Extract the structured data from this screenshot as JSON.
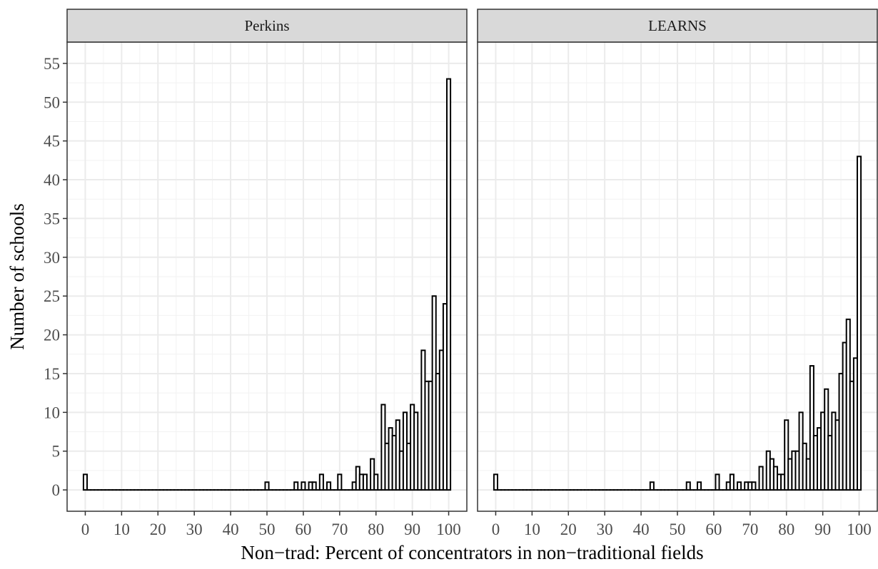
{
  "chart_data": {
    "type": "bar",
    "xlabel": "Non−trad: Percent of concentrators in non−traditional fields",
    "ylabel": "Number of schools",
    "xlim": [
      -5,
      105
    ],
    "ylim": [
      -2.75,
      57.75
    ],
    "x_ticks": [
      0,
      10,
      20,
      30,
      40,
      50,
      60,
      70,
      80,
      90,
      100
    ],
    "y_ticks": [
      0,
      5,
      10,
      15,
      20,
      25,
      30,
      35,
      40,
      45,
      50,
      55
    ],
    "grid": true,
    "bin_width": 1,
    "panels": [
      {
        "name": "Perkins",
        "x": [
          0,
          1,
          2,
          3,
          4,
          5,
          6,
          7,
          8,
          9,
          10,
          11,
          12,
          13,
          14,
          15,
          16,
          17,
          18,
          19,
          20,
          21,
          22,
          23,
          24,
          25,
          26,
          27,
          28,
          29,
          30,
          31,
          32,
          33,
          34,
          35,
          36,
          37,
          38,
          39,
          40,
          41,
          42,
          43,
          44,
          45,
          46,
          47,
          48,
          49,
          50,
          51,
          52,
          53,
          54,
          55,
          56,
          57,
          58,
          59,
          60,
          61,
          62,
          63,
          64,
          65,
          66,
          67,
          68,
          69,
          70,
          71,
          72,
          73,
          74,
          75,
          76,
          77,
          78,
          79,
          80,
          81,
          82,
          83,
          84,
          85,
          86,
          87,
          88,
          89,
          90,
          91,
          92,
          93,
          94,
          95,
          96,
          97,
          98,
          99,
          100
        ],
        "values": [
          2,
          0,
          0,
          0,
          0,
          0,
          0,
          0,
          0,
          0,
          0,
          0,
          0,
          0,
          0,
          0,
          0,
          0,
          0,
          0,
          0,
          0,
          0,
          0,
          0,
          0,
          0,
          0,
          0,
          0,
          0,
          0,
          0,
          0,
          0,
          0,
          0,
          0,
          0,
          0,
          0,
          0,
          0,
          0,
          0,
          0,
          0,
          0,
          0,
          0,
          1,
          0,
          0,
          0,
          0,
          0,
          0,
          0,
          1,
          0,
          1,
          0,
          1,
          1,
          0,
          2,
          0,
          1,
          0,
          0,
          2,
          0,
          0,
          0,
          1,
          3,
          2,
          2,
          0,
          4,
          2,
          0,
          11,
          6,
          8,
          7,
          9,
          5,
          10,
          6,
          11,
          10,
          0,
          18,
          14,
          14,
          25,
          15,
          18,
          24,
          53
        ]
      },
      {
        "name": "LEARNS",
        "x": [
          0,
          1,
          2,
          3,
          4,
          5,
          6,
          7,
          8,
          9,
          10,
          11,
          12,
          13,
          14,
          15,
          16,
          17,
          18,
          19,
          20,
          21,
          22,
          23,
          24,
          25,
          26,
          27,
          28,
          29,
          30,
          31,
          32,
          33,
          34,
          35,
          36,
          37,
          38,
          39,
          40,
          41,
          42,
          43,
          44,
          45,
          46,
          47,
          48,
          49,
          50,
          51,
          52,
          53,
          54,
          55,
          56,
          57,
          58,
          59,
          60,
          61,
          62,
          63,
          64,
          65,
          66,
          67,
          68,
          69,
          70,
          71,
          72,
          73,
          74,
          75,
          76,
          77,
          78,
          79,
          80,
          81,
          82,
          83,
          84,
          85,
          86,
          87,
          88,
          89,
          90,
          91,
          92,
          93,
          94,
          95,
          96,
          97,
          98,
          99,
          100
        ],
        "values": [
          2,
          0,
          0,
          0,
          0,
          0,
          0,
          0,
          0,
          0,
          0,
          0,
          0,
          0,
          0,
          0,
          0,
          0,
          0,
          0,
          0,
          0,
          0,
          0,
          0,
          0,
          0,
          0,
          0,
          0,
          0,
          0,
          0,
          0,
          0,
          0,
          0,
          0,
          0,
          0,
          0,
          0,
          0,
          1,
          0,
          0,
          0,
          0,
          0,
          0,
          0,
          0,
          0,
          1,
          0,
          0,
          1,
          0,
          0,
          0,
          0,
          2,
          0,
          0,
          1,
          2,
          0,
          1,
          0,
          1,
          1,
          1,
          0,
          3,
          0,
          5,
          4,
          3,
          2,
          2,
          9,
          4,
          5,
          5,
          10,
          6,
          4,
          16,
          7,
          8,
          10,
          13,
          7,
          10,
          9,
          15,
          19,
          22,
          14,
          17,
          43
        ]
      }
    ]
  }
}
